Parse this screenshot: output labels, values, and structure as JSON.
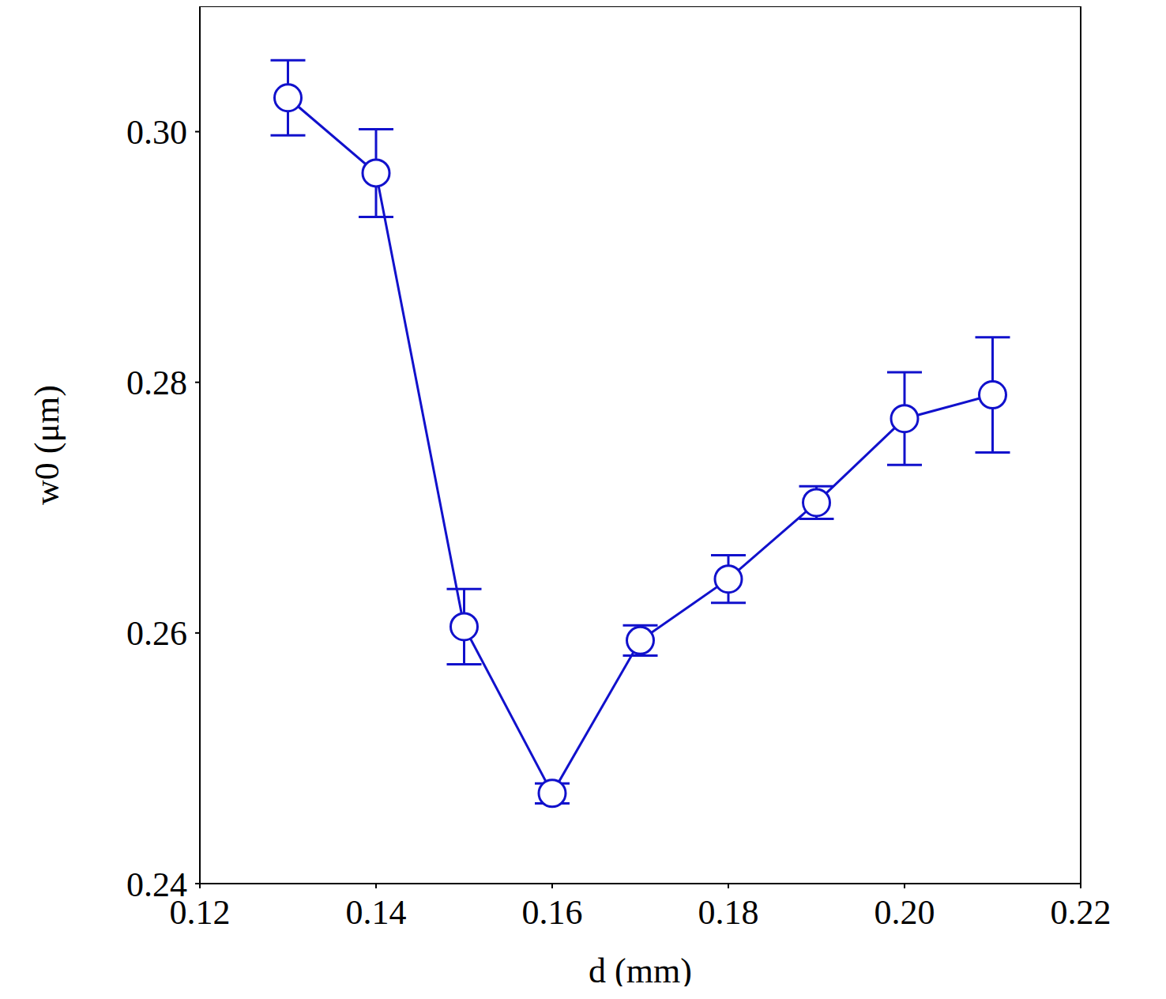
{
  "chart_data": {
    "type": "line",
    "x_label": "d (mm)",
    "y_label": "w0 (μm)",
    "x": [
      0.13,
      0.14,
      0.15,
      0.16,
      0.17,
      0.18,
      0.19,
      0.2,
      0.21
    ],
    "series": [
      {
        "color": "#1111cc",
        "marker": "open_circle",
        "line_style": "solid",
        "values": [
          0.3027,
          0.2967,
          0.2605,
          0.2472,
          0.2594,
          0.2643,
          0.2704,
          0.2771,
          0.279
        ],
        "errors": [
          0.003,
          0.0035,
          0.003,
          0.0008,
          0.0012,
          0.0019,
          0.0013,
          0.0037,
          0.0046
        ]
      }
    ],
    "xlim": [
      0.12,
      0.22
    ],
    "xticks": [
      0.12,
      0.14,
      0.16,
      0.18,
      {
        "value": 0.2,
        "label": "0.20"
      },
      0.22
    ],
    "ylim": [
      0.24,
      0.31
    ],
    "yticks": [
      0.24,
      0.26,
      0.28,
      {
        "value": 0.3,
        "label": "0.30"
      }
    ],
    "grid": false
  }
}
